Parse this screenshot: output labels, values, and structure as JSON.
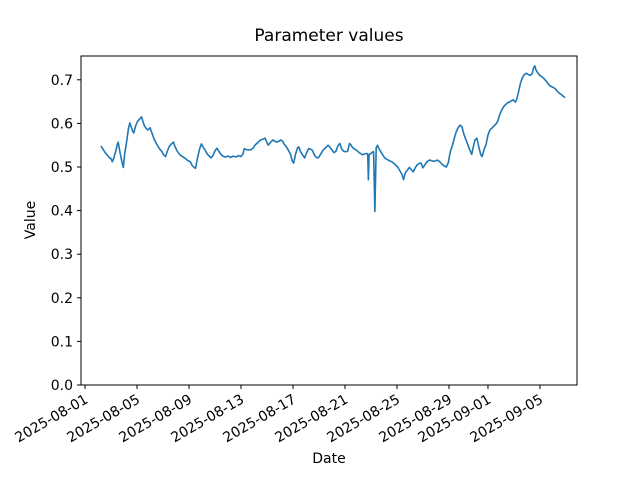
{
  "chart_data": {
    "type": "line",
    "title": "Parameter values",
    "xlabel": "Date",
    "ylabel": "Value",
    "grid": false,
    "legend": false,
    "line_color": "#1f77b4",
    "axis_color": "#000000",
    "x_tick_labels": [
      "2025-08-01",
      "2025-08-05",
      "2025-08-09",
      "2025-08-13",
      "2025-08-17",
      "2025-08-21",
      "2025-08-25",
      "2025-08-29",
      "2025-09-01",
      "2025-09-05"
    ],
    "x_tick_days": [
      0,
      4,
      8,
      12,
      16,
      20,
      24,
      28,
      31,
      35
    ],
    "x_units": "days since 2025-08-01",
    "x_range_days": [
      -0.31,
      37.85
    ],
    "y_tick_labels": [
      "0.0",
      "0.1",
      "0.2",
      "0.3",
      "0.4",
      "0.5",
      "0.6",
      "0.7"
    ],
    "y_tick_values": [
      0.0,
      0.1,
      0.2,
      0.3,
      0.4,
      0.5,
      0.6,
      0.7
    ],
    "y_range": [
      0.0,
      0.7546
    ],
    "points": [
      [
        1.25,
        0.547
      ],
      [
        1.4,
        0.54
      ],
      [
        1.55,
        0.533
      ],
      [
        1.7,
        0.528
      ],
      [
        1.85,
        0.522
      ],
      [
        2.0,
        0.519
      ],
      [
        2.1,
        0.512
      ],
      [
        2.2,
        0.519
      ],
      [
        2.35,
        0.535
      ],
      [
        2.5,
        0.553
      ],
      [
        2.55,
        0.557
      ],
      [
        2.7,
        0.532
      ],
      [
        2.85,
        0.51
      ],
      [
        2.95,
        0.499
      ],
      [
        3.05,
        0.53
      ],
      [
        3.2,
        0.558
      ],
      [
        3.35,
        0.59
      ],
      [
        3.45,
        0.601
      ],
      [
        3.55,
        0.592
      ],
      [
        3.65,
        0.583
      ],
      [
        3.75,
        0.578
      ],
      [
        3.9,
        0.595
      ],
      [
        4.05,
        0.605
      ],
      [
        4.2,
        0.61
      ],
      [
        4.35,
        0.615
      ],
      [
        4.45,
        0.605
      ],
      [
        4.55,
        0.596
      ],
      [
        4.7,
        0.588
      ],
      [
        4.85,
        0.585
      ],
      [
        5.0,
        0.59
      ],
      [
        5.15,
        0.578
      ],
      [
        5.3,
        0.565
      ],
      [
        5.45,
        0.556
      ],
      [
        5.6,
        0.548
      ],
      [
        5.75,
        0.541
      ],
      [
        5.9,
        0.536
      ],
      [
        6.05,
        0.528
      ],
      [
        6.2,
        0.524
      ],
      [
        6.35,
        0.538
      ],
      [
        6.5,
        0.548
      ],
      [
        6.65,
        0.553
      ],
      [
        6.8,
        0.557
      ],
      [
        6.95,
        0.545
      ],
      [
        7.1,
        0.536
      ],
      [
        7.3,
        0.528
      ],
      [
        7.5,
        0.524
      ],
      [
        7.7,
        0.52
      ],
      [
        7.9,
        0.515
      ],
      [
        8.1,
        0.512
      ],
      [
        8.25,
        0.503
      ],
      [
        8.4,
        0.499
      ],
      [
        8.5,
        0.497
      ],
      [
        8.65,
        0.52
      ],
      [
        8.8,
        0.54
      ],
      [
        8.95,
        0.553
      ],
      [
        9.1,
        0.545
      ],
      [
        9.25,
        0.538
      ],
      [
        9.4,
        0.53
      ],
      [
        9.55,
        0.525
      ],
      [
        9.7,
        0.521
      ],
      [
        9.85,
        0.527
      ],
      [
        10.0,
        0.537
      ],
      [
        10.15,
        0.543
      ],
      [
        10.3,
        0.536
      ],
      [
        10.45,
        0.529
      ],
      [
        10.6,
        0.525
      ],
      [
        10.8,
        0.523
      ],
      [
        11.0,
        0.525
      ],
      [
        11.2,
        0.522
      ],
      [
        11.4,
        0.525
      ],
      [
        11.6,
        0.523
      ],
      [
        11.8,
        0.526
      ],
      [
        12.0,
        0.524
      ],
      [
        12.15,
        0.53
      ],
      [
        12.25,
        0.542
      ],
      [
        12.4,
        0.54
      ],
      [
        12.6,
        0.539
      ],
      [
        12.8,
        0.54
      ],
      [
        12.95,
        0.544
      ],
      [
        13.1,
        0.551
      ],
      [
        13.3,
        0.556
      ],
      [
        13.5,
        0.562
      ],
      [
        13.7,
        0.564
      ],
      [
        13.85,
        0.566
      ],
      [
        14.0,
        0.556
      ],
      [
        14.1,
        0.55
      ],
      [
        14.25,
        0.556
      ],
      [
        14.45,
        0.562
      ],
      [
        14.6,
        0.559
      ],
      [
        14.75,
        0.557
      ],
      [
        14.9,
        0.559
      ],
      [
        15.05,
        0.562
      ],
      [
        15.2,
        0.559
      ],
      [
        15.35,
        0.551
      ],
      [
        15.5,
        0.546
      ],
      [
        15.65,
        0.538
      ],
      [
        15.8,
        0.53
      ],
      [
        15.95,
        0.513
      ],
      [
        16.05,
        0.509
      ],
      [
        16.2,
        0.53
      ],
      [
        16.35,
        0.544
      ],
      [
        16.45,
        0.546
      ],
      [
        16.6,
        0.534
      ],
      [
        16.75,
        0.527
      ],
      [
        16.9,
        0.521
      ],
      [
        17.05,
        0.533
      ],
      [
        17.2,
        0.542
      ],
      [
        17.35,
        0.541
      ],
      [
        17.5,
        0.538
      ],
      [
        17.65,
        0.527
      ],
      [
        17.8,
        0.522
      ],
      [
        17.95,
        0.521
      ],
      [
        18.1,
        0.528
      ],
      [
        18.3,
        0.538
      ],
      [
        18.5,
        0.544
      ],
      [
        18.7,
        0.55
      ],
      [
        18.85,
        0.545
      ],
      [
        19.0,
        0.539
      ],
      [
        19.15,
        0.533
      ],
      [
        19.3,
        0.536
      ],
      [
        19.45,
        0.548
      ],
      [
        19.6,
        0.554
      ],
      [
        19.75,
        0.541
      ],
      [
        19.9,
        0.536
      ],
      [
        20.05,
        0.535
      ],
      [
        20.2,
        0.536
      ],
      [
        20.35,
        0.554
      ],
      [
        20.45,
        0.551
      ],
      [
        20.6,
        0.544
      ],
      [
        20.75,
        0.541
      ],
      [
        20.9,
        0.538
      ],
      [
        21.05,
        0.534
      ],
      [
        21.2,
        0.531
      ],
      [
        21.35,
        0.528
      ],
      [
        21.5,
        0.53
      ],
      [
        21.65,
        0.531
      ],
      [
        21.75,
        0.53
      ],
      [
        21.8,
        0.471
      ],
      [
        21.85,
        0.528
      ],
      [
        22.0,
        0.531
      ],
      [
        22.1,
        0.534
      ],
      [
        22.2,
        0.535
      ],
      [
        22.3,
        0.398
      ],
      [
        22.4,
        0.544
      ],
      [
        22.5,
        0.55
      ],
      [
        22.6,
        0.543
      ],
      [
        22.75,
        0.535
      ],
      [
        22.9,
        0.528
      ],
      [
        23.05,
        0.521
      ],
      [
        23.25,
        0.517
      ],
      [
        23.45,
        0.514
      ],
      [
        23.65,
        0.511
      ],
      [
        23.85,
        0.506
      ],
      [
        24.05,
        0.5
      ],
      [
        24.25,
        0.49
      ],
      [
        24.4,
        0.482
      ],
      [
        24.5,
        0.471
      ],
      [
        24.65,
        0.487
      ],
      [
        24.8,
        0.493
      ],
      [
        24.95,
        0.499
      ],
      [
        25.1,
        0.494
      ],
      [
        25.25,
        0.489
      ],
      [
        25.4,
        0.498
      ],
      [
        25.55,
        0.505
      ],
      [
        25.7,
        0.508
      ],
      [
        25.85,
        0.509
      ],
      [
        26.0,
        0.498
      ],
      [
        26.15,
        0.505
      ],
      [
        26.3,
        0.512
      ],
      [
        26.5,
        0.516
      ],
      [
        26.7,
        0.514
      ],
      [
        26.9,
        0.513
      ],
      [
        27.1,
        0.516
      ],
      [
        27.25,
        0.513
      ],
      [
        27.45,
        0.507
      ],
      [
        27.65,
        0.502
      ],
      [
        27.8,
        0.5
      ],
      [
        27.95,
        0.51
      ],
      [
        28.1,
        0.535
      ],
      [
        28.25,
        0.548
      ],
      [
        28.4,
        0.565
      ],
      [
        28.55,
        0.58
      ],
      [
        28.7,
        0.59
      ],
      [
        28.85,
        0.596
      ],
      [
        29.0,
        0.592
      ],
      [
        29.15,
        0.575
      ],
      [
        29.3,
        0.563
      ],
      [
        29.45,
        0.551
      ],
      [
        29.6,
        0.539
      ],
      [
        29.75,
        0.529
      ],
      [
        29.9,
        0.55
      ],
      [
        30.0,
        0.562
      ],
      [
        30.15,
        0.566
      ],
      [
        30.3,
        0.545
      ],
      [
        30.45,
        0.528
      ],
      [
        30.55,
        0.524
      ],
      [
        30.7,
        0.54
      ],
      [
        30.85,
        0.551
      ],
      [
        31.0,
        0.573
      ],
      [
        31.15,
        0.585
      ],
      [
        31.3,
        0.589
      ],
      [
        31.45,
        0.594
      ],
      [
        31.6,
        0.598
      ],
      [
        31.75,
        0.605
      ],
      [
        31.9,
        0.62
      ],
      [
        32.05,
        0.63
      ],
      [
        32.2,
        0.638
      ],
      [
        32.35,
        0.643
      ],
      [
        32.5,
        0.647
      ],
      [
        32.65,
        0.649
      ],
      [
        32.8,
        0.652
      ],
      [
        32.95,
        0.654
      ],
      [
        33.1,
        0.649
      ],
      [
        33.2,
        0.654
      ],
      [
        33.35,
        0.672
      ],
      [
        33.5,
        0.692
      ],
      [
        33.65,
        0.705
      ],
      [
        33.8,
        0.712
      ],
      [
        33.95,
        0.715
      ],
      [
        34.1,
        0.712
      ],
      [
        34.25,
        0.71
      ],
      [
        34.4,
        0.714
      ],
      [
        34.5,
        0.726
      ],
      [
        34.6,
        0.732
      ],
      [
        34.7,
        0.722
      ],
      [
        34.85,
        0.715
      ],
      [
        35.0,
        0.71
      ],
      [
        35.15,
        0.707
      ],
      [
        35.3,
        0.703
      ],
      [
        35.45,
        0.698
      ],
      [
        35.6,
        0.692
      ],
      [
        35.75,
        0.687
      ],
      [
        35.9,
        0.684
      ],
      [
        36.05,
        0.682
      ],
      [
        36.2,
        0.679
      ],
      [
        36.35,
        0.673
      ],
      [
        36.5,
        0.669
      ],
      [
        36.65,
        0.666
      ],
      [
        36.8,
        0.662
      ],
      [
        36.9,
        0.66
      ]
    ]
  }
}
